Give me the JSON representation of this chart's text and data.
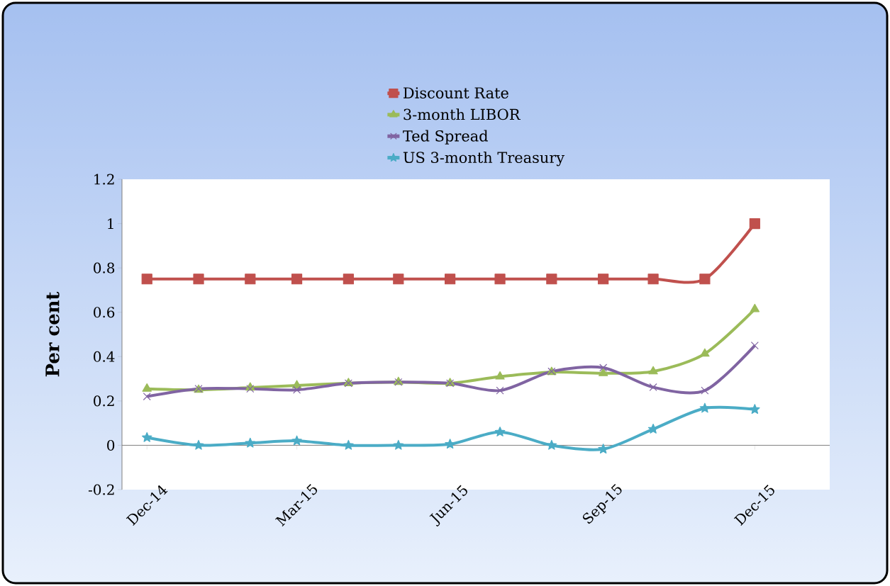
{
  "chart_data": {
    "type": "line",
    "ylabel": "Per cent",
    "x": [
      "2014-12",
      "2015-01",
      "2015-02",
      "2015-03",
      "2015-04",
      "2015-05",
      "2015-06",
      "2015-07",
      "2015-08",
      "2015-09",
      "2015-10",
      "2015-11",
      "2015-12"
    ],
    "series": [
      {
        "name": "Discount Rate",
        "color": "#c0504d",
        "marker": "square",
        "values": [
          0.75,
          0.75,
          0.75,
          0.75,
          0.75,
          0.75,
          0.75,
          0.75,
          0.75,
          0.75,
          0.75,
          0.75,
          1.0
        ]
      },
      {
        "name": "3-month LIBOR",
        "color": "#9bbb59",
        "marker": "triangle",
        "values": [
          0.255,
          0.25,
          0.26,
          0.27,
          0.28,
          0.285,
          0.28,
          0.31,
          0.33,
          0.325,
          0.333,
          0.413,
          0.614
        ]
      },
      {
        "name": "Ted Spread",
        "color": "#8064a2",
        "marker": "cross",
        "values": [
          0.22,
          0.255,
          0.255,
          0.25,
          0.28,
          0.285,
          0.28,
          0.247,
          0.333,
          0.35,
          0.262,
          0.247,
          0.45
        ]
      },
      {
        "name": "US 3-month Treasury",
        "color": "#4bacc6",
        "marker": "star",
        "values": [
          0.035,
          0.0,
          0.01,
          0.02,
          0.0,
          0.0,
          0.005,
          0.06,
          0.0,
          -0.017,
          0.073,
          0.167,
          0.162
        ]
      }
    ],
    "xlim": [
      "2014-11-16",
      "2016-01-15"
    ],
    "xticks": [
      {
        "value": "2014-12",
        "label": "Dec-14"
      },
      {
        "value": "2015-03",
        "label": "Mar-15"
      },
      {
        "value": "2015-06",
        "label": "Jun-15"
      },
      {
        "value": "2015-09",
        "label": "Sep-15"
      },
      {
        "value": "2015-12",
        "label": "Dec-15"
      }
    ],
    "ylim": [
      -0.2,
      1.2
    ],
    "yticks": [
      -0.2,
      0,
      0.2,
      0.4,
      0.6,
      0.8,
      1,
      1.2
    ],
    "legend": "top"
  }
}
